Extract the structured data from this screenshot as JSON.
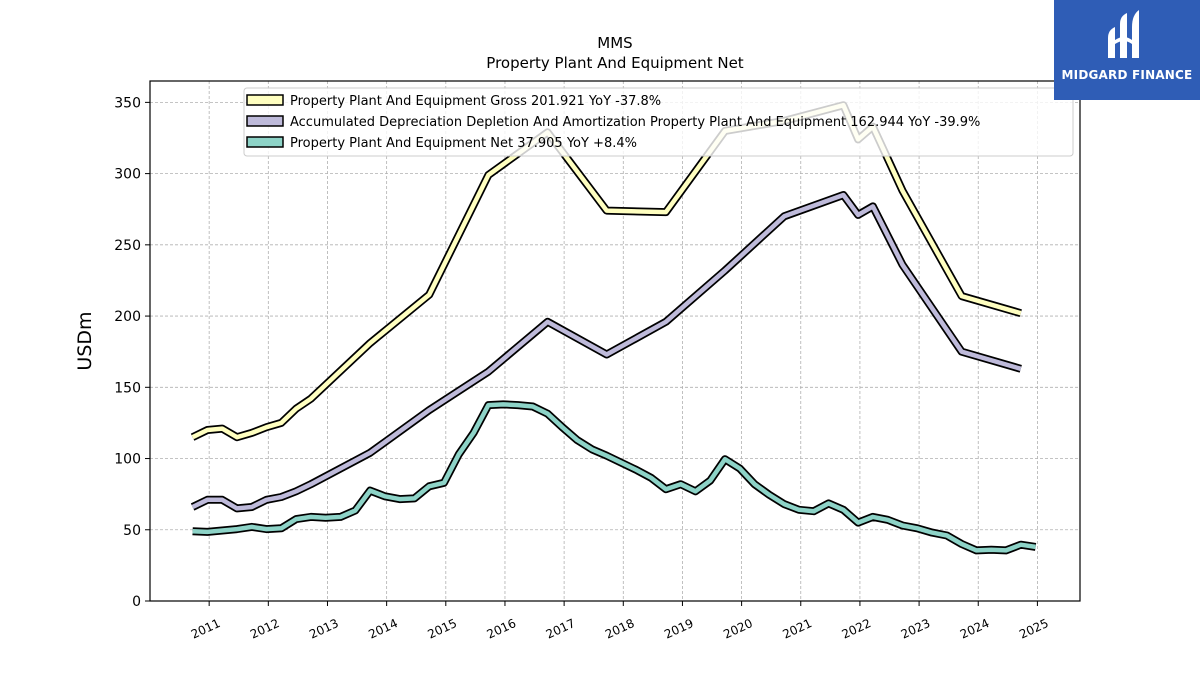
{
  "brand": {
    "name": "MIDGARD FINANCE",
    "bg_color": "#2f5db6"
  },
  "chart_data": {
    "type": "line",
    "title": "MMS",
    "subtitle": "Property Plant And Equipment Net",
    "ylabel": "USDm",
    "xlabel": "",
    "ylim": [
      0,
      365
    ],
    "xlim": [
      2010.0,
      2025.72
    ],
    "yticks": [
      0,
      50,
      100,
      150,
      200,
      250,
      300,
      350
    ],
    "xticks": [
      "2011",
      "2012",
      "2013",
      "2014",
      "2015",
      "2016",
      "2017",
      "2018",
      "2019",
      "2020",
      "2021",
      "2022",
      "2023",
      "2024",
      "2025"
    ],
    "grid": true,
    "legend_position": "top-center",
    "series": [
      {
        "name": "Property Plant And Equipment Gross",
        "legend_label": "Property Plant And Equipment Gross  201.921 YoY -37.8%",
        "color": "#ffffc0",
        "points": [
          [
            2010.72,
            115
          ],
          [
            2010.97,
            120
          ],
          [
            2011.22,
            121
          ],
          [
            2011.47,
            115
          ],
          [
            2011.72,
            118
          ],
          [
            2011.97,
            122
          ],
          [
            2012.22,
            125
          ],
          [
            2012.47,
            135
          ],
          [
            2012.72,
            142
          ],
          [
            2013.72,
            181
          ],
          [
            2014.72,
            215
          ],
          [
            2015.72,
            299
          ],
          [
            2016.72,
            329
          ],
          [
            2017.72,
            274
          ],
          [
            2018.72,
            273
          ],
          [
            2019.72,
            330
          ],
          [
            2020.72,
            337
          ],
          [
            2021.72,
            348
          ],
          [
            2021.97,
            324
          ],
          [
            2022.22,
            333
          ],
          [
            2022.72,
            288
          ],
          [
            2023.72,
            214
          ],
          [
            2024.72,
            202
          ]
        ]
      },
      {
        "name": "Accumulated Depreciation Depletion And Amortization Property Plant And Equipment",
        "legend_label": "Accumulated Depreciation Depletion And Amortization Property Plant And Equipment  162.944 YoY -39.9%",
        "color": "#bebada",
        "points": [
          [
            2010.72,
            66
          ],
          [
            2010.97,
            71
          ],
          [
            2011.22,
            71
          ],
          [
            2011.47,
            65
          ],
          [
            2011.72,
            66
          ],
          [
            2011.97,
            71
          ],
          [
            2012.22,
            73
          ],
          [
            2012.47,
            77
          ],
          [
            2012.72,
            82
          ],
          [
            2013.72,
            104
          ],
          [
            2014.72,
            134
          ],
          [
            2015.72,
            161
          ],
          [
            2016.72,
            196
          ],
          [
            2017.72,
            173
          ],
          [
            2018.72,
            196
          ],
          [
            2019.72,
            232
          ],
          [
            2020.72,
            270
          ],
          [
            2021.72,
            285
          ],
          [
            2021.97,
            271
          ],
          [
            2022.22,
            277
          ],
          [
            2022.72,
            236
          ],
          [
            2023.72,
            175
          ],
          [
            2024.72,
            163
          ]
        ]
      },
      {
        "name": "Property Plant And Equipment Net",
        "legend_label": "Property Plant And Equipment Net  37.905 YoY +8.4%",
        "color": "#8dd3c7",
        "points": [
          [
            2010.72,
            49
          ],
          [
            2010.97,
            48.5
          ],
          [
            2011.22,
            49.5
          ],
          [
            2011.47,
            50.5
          ],
          [
            2011.72,
            52
          ],
          [
            2011.97,
            50.5
          ],
          [
            2012.22,
            51
          ],
          [
            2012.47,
            57.5
          ],
          [
            2012.72,
            59
          ],
          [
            2012.97,
            58.5
          ],
          [
            2013.22,
            59
          ],
          [
            2013.47,
            63.5
          ],
          [
            2013.72,
            77.5
          ],
          [
            2013.97,
            73.5
          ],
          [
            2014.22,
            71.5
          ],
          [
            2014.47,
            72
          ],
          [
            2014.72,
            80.5
          ],
          [
            2014.97,
            83
          ],
          [
            2015.22,
            103
          ],
          [
            2015.47,
            118
          ],
          [
            2015.72,
            137.5
          ],
          [
            2015.97,
            138
          ],
          [
            2016.22,
            137.5
          ],
          [
            2016.47,
            136.5
          ],
          [
            2016.72,
            131.5
          ],
          [
            2016.97,
            122
          ],
          [
            2017.22,
            113
          ],
          [
            2017.47,
            106.5
          ],
          [
            2017.72,
            102
          ],
          [
            2018.22,
            92
          ],
          [
            2018.47,
            86.5
          ],
          [
            2018.72,
            78.5
          ],
          [
            2018.97,
            82
          ],
          [
            2019.22,
            77
          ],
          [
            2019.47,
            84.5
          ],
          [
            2019.72,
            99.5
          ],
          [
            2019.97,
            93
          ],
          [
            2020.22,
            82
          ],
          [
            2020.47,
            74.5
          ],
          [
            2020.72,
            68
          ],
          [
            2020.97,
            64
          ],
          [
            2021.22,
            63
          ],
          [
            2021.47,
            68.5
          ],
          [
            2021.72,
            64
          ],
          [
            2021.97,
            55
          ],
          [
            2022.22,
            59
          ],
          [
            2022.47,
            57
          ],
          [
            2022.72,
            53
          ],
          [
            2022.97,
            51
          ],
          [
            2023.22,
            48
          ],
          [
            2023.47,
            46
          ],
          [
            2023.72,
            40
          ],
          [
            2023.97,
            35.5
          ],
          [
            2024.22,
            36
          ],
          [
            2024.47,
            35.5
          ],
          [
            2024.72,
            39.5
          ],
          [
            2024.97,
            38
          ]
        ]
      }
    ]
  }
}
